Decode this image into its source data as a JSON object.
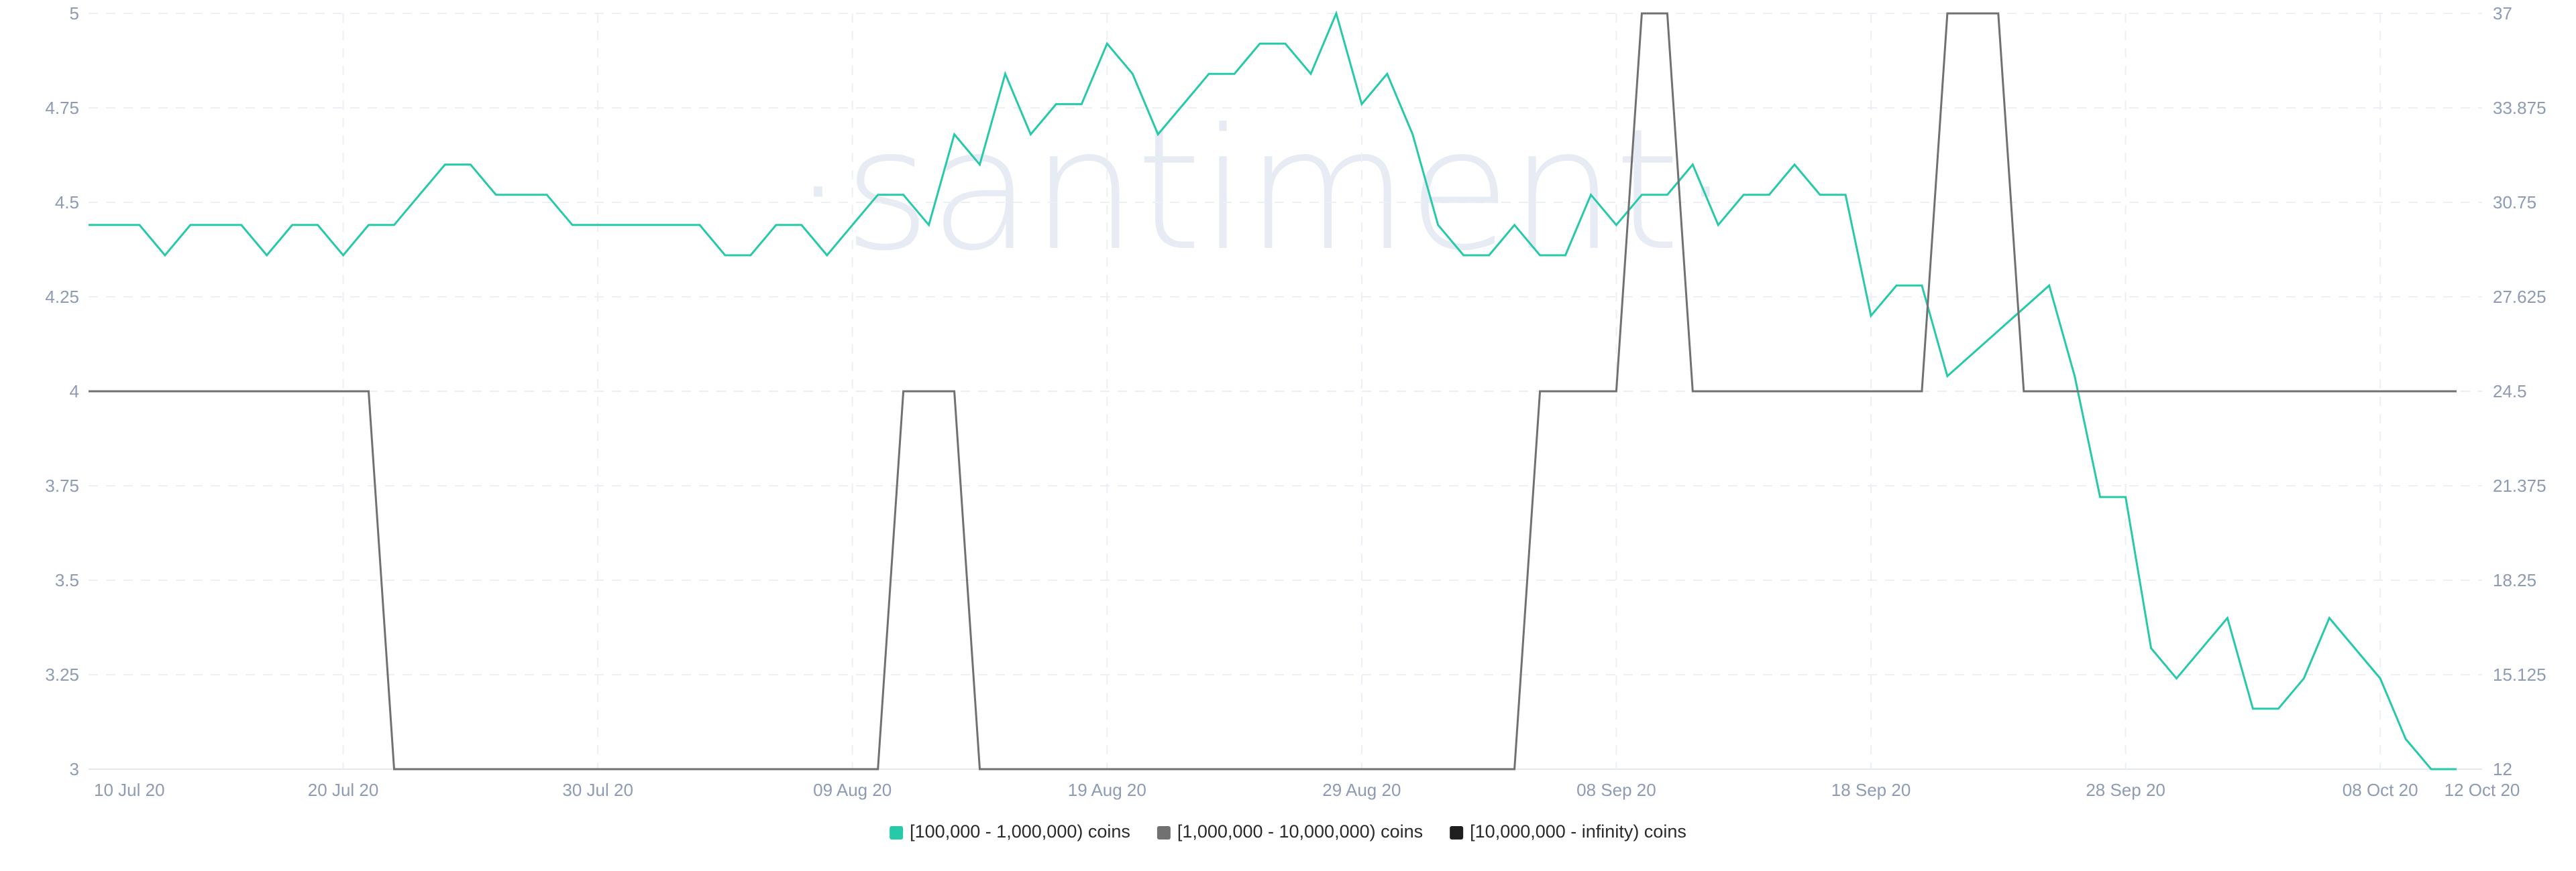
{
  "watermark": "·santiment·",
  "chart_data": {
    "type": "line",
    "title": "",
    "xlabel": "",
    "ylabel": "",
    "x_ticks": [
      "10 Jul 20",
      "20 Jul 20",
      "30 Jul 20",
      "09 Aug 20",
      "19 Aug 20",
      "29 Aug 20",
      "08 Sep 20",
      "18 Sep 20",
      "28 Sep 20",
      "08 Oct 20",
      "12 Oct 20"
    ],
    "x_range": [
      "2020-07-10",
      "2020-10-12"
    ],
    "y_left": {
      "range": [
        3,
        5
      ],
      "ticks": [
        "5",
        "4.75",
        "4.5",
        "4.25",
        "4",
        "3.75",
        "3.5",
        "3.25",
        "3"
      ]
    },
    "y_right": {
      "range": [
        12,
        37
      ],
      "ticks": [
        "37",
        "33.875",
        "30.75",
        "27.625",
        "24.5",
        "21.375",
        "18.25",
        "15.125",
        "12"
      ]
    },
    "grid": true,
    "legend_position": "bottom-center",
    "series": [
      {
        "name": "[100,000  - 1,000,000) coins",
        "axis": "left",
        "color": "#26c9a8",
        "points": [
          [
            "2020-07-10",
            4.44
          ],
          [
            "2020-07-11",
            4.44
          ],
          [
            "2020-07-12",
            4.44
          ],
          [
            "2020-07-13",
            4.36
          ],
          [
            "2020-07-14",
            4.44
          ],
          [
            "2020-07-15",
            4.44
          ],
          [
            "2020-07-16",
            4.44
          ],
          [
            "2020-07-17",
            4.36
          ],
          [
            "2020-07-18",
            4.44
          ],
          [
            "2020-07-19",
            4.44
          ],
          [
            "2020-07-20",
            4.36
          ],
          [
            "2020-07-21",
            4.44
          ],
          [
            "2020-07-22",
            4.44
          ],
          [
            "2020-07-23",
            4.52
          ],
          [
            "2020-07-24",
            4.6
          ],
          [
            "2020-07-25",
            4.6
          ],
          [
            "2020-07-26",
            4.52
          ],
          [
            "2020-07-27",
            4.52
          ],
          [
            "2020-07-28",
            4.52
          ],
          [
            "2020-07-29",
            4.44
          ],
          [
            "2020-07-30",
            4.44
          ],
          [
            "2020-07-31",
            4.44
          ],
          [
            "2020-08-01",
            4.44
          ],
          [
            "2020-08-02",
            4.44
          ],
          [
            "2020-08-03",
            4.44
          ],
          [
            "2020-08-04",
            4.36
          ],
          [
            "2020-08-05",
            4.36
          ],
          [
            "2020-08-06",
            4.44
          ],
          [
            "2020-08-07",
            4.44
          ],
          [
            "2020-08-08",
            4.36
          ],
          [
            "2020-08-09",
            4.44
          ],
          [
            "2020-08-10",
            4.52
          ],
          [
            "2020-08-11",
            4.52
          ],
          [
            "2020-08-12",
            4.44
          ],
          [
            "2020-08-13",
            4.68
          ],
          [
            "2020-08-14",
            4.6
          ],
          [
            "2020-08-15",
            4.84
          ],
          [
            "2020-08-16",
            4.68
          ],
          [
            "2020-08-17",
            4.76
          ],
          [
            "2020-08-18",
            4.76
          ],
          [
            "2020-08-19",
            4.92
          ],
          [
            "2020-08-20",
            4.84
          ],
          [
            "2020-08-21",
            4.68
          ],
          [
            "2020-08-22",
            4.76
          ],
          [
            "2020-08-23",
            4.84
          ],
          [
            "2020-08-24",
            4.84
          ],
          [
            "2020-08-25",
            4.92
          ],
          [
            "2020-08-26",
            4.92
          ],
          [
            "2020-08-27",
            4.84
          ],
          [
            "2020-08-28",
            5.0
          ],
          [
            "2020-08-29",
            4.76
          ],
          [
            "2020-08-30",
            4.84
          ],
          [
            "2020-08-31",
            4.68
          ],
          [
            "2020-09-01",
            4.44
          ],
          [
            "2020-09-02",
            4.36
          ],
          [
            "2020-09-03",
            4.36
          ],
          [
            "2020-09-04",
            4.44
          ],
          [
            "2020-09-05",
            4.36
          ],
          [
            "2020-09-06",
            4.36
          ],
          [
            "2020-09-07",
            4.52
          ],
          [
            "2020-09-08",
            4.44
          ],
          [
            "2020-09-09",
            4.52
          ],
          [
            "2020-09-10",
            4.52
          ],
          [
            "2020-09-11",
            4.6
          ],
          [
            "2020-09-12",
            4.44
          ],
          [
            "2020-09-13",
            4.52
          ],
          [
            "2020-09-14",
            4.52
          ],
          [
            "2020-09-15",
            4.6
          ],
          [
            "2020-09-16",
            4.52
          ],
          [
            "2020-09-17",
            4.52
          ],
          [
            "2020-09-18",
            4.2
          ],
          [
            "2020-09-19",
            4.28
          ],
          [
            "2020-09-20",
            4.28
          ],
          [
            "2020-09-21",
            4.04
          ],
          [
            "2020-09-25",
            4.28
          ],
          [
            "2020-09-26",
            4.04
          ],
          [
            "2020-09-27",
            3.72
          ],
          [
            "2020-09-28",
            3.72
          ],
          [
            "2020-09-29",
            3.32
          ],
          [
            "2020-09-30",
            3.24
          ],
          [
            "2020-10-02",
            3.4
          ],
          [
            "2020-10-03",
            3.16
          ],
          [
            "2020-10-04",
            3.16
          ],
          [
            "2020-10-05",
            3.24
          ],
          [
            "2020-10-06",
            3.4
          ],
          [
            "2020-10-08",
            3.24
          ],
          [
            "2020-10-09",
            3.08
          ],
          [
            "2020-10-10",
            3.0
          ],
          [
            "2020-10-11",
            3.0
          ]
        ]
      },
      {
        "name": "[1,000,000 - 10,000,000) coins",
        "axis": "left",
        "color": "#717171",
        "points": [
          [
            "2020-07-10",
            4
          ],
          [
            "2020-07-21",
            4
          ],
          [
            "2020-07-22",
            3
          ],
          [
            "2020-08-10",
            3
          ],
          [
            "2020-08-11",
            4
          ],
          [
            "2020-08-13",
            4
          ],
          [
            "2020-08-14",
            3
          ],
          [
            "2020-09-04",
            3
          ],
          [
            "2020-09-05",
            4
          ],
          [
            "2020-09-08",
            4
          ],
          [
            "2020-09-09",
            5
          ],
          [
            "2020-09-10",
            5
          ],
          [
            "2020-09-11",
            4
          ],
          [
            "2020-09-20",
            4
          ],
          [
            "2020-09-21",
            5
          ],
          [
            "2020-09-23",
            5
          ],
          [
            "2020-09-24",
            4
          ],
          [
            "2020-10-11",
            4
          ]
        ]
      },
      {
        "name": "[10,000,000 - infinity) coins",
        "axis": "right",
        "color": "#1f1f1f",
        "points": []
      }
    ]
  }
}
